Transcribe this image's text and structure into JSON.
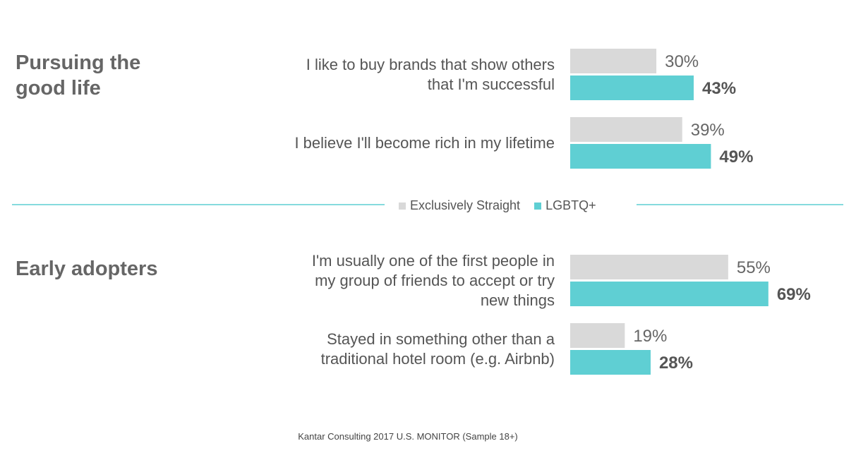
{
  "chart_data": {
    "type": "bar",
    "orientation": "horizontal",
    "xlim": [
      0,
      100
    ],
    "series": [
      {
        "name": "Exclusively Straight",
        "color": "#d9d9d9"
      },
      {
        "name": "LGBTQ+",
        "color": "#5fcfd3"
      }
    ],
    "sections": [
      {
        "title": "Pursuing the\ngood life",
        "categories": [
          "I like to buy brands that show others\nthat I'm successful",
          "I believe I'll become rich in my lifetime"
        ],
        "values": [
          [
            30,
            39
          ],
          [
            43,
            49
          ]
        ],
        "value_labels": [
          [
            "30%",
            "39%"
          ],
          [
            "43%",
            "49%"
          ]
        ]
      },
      {
        "title": "Early adopters",
        "categories": [
          "I'm usually one of the first people in\nmy group of friends to accept or try\nnew things",
          "Stayed in something other than a\ntraditional hotel room (e.g. Airbnb)"
        ],
        "values": [
          [
            55,
            19
          ],
          [
            69,
            28
          ]
        ],
        "value_labels": [
          [
            "55%",
            "19%"
          ],
          [
            "69%",
            "28%"
          ]
        ]
      }
    ],
    "source": "Kantar Consulting 2017 U.S. MONITOR (Sample 18+)"
  }
}
